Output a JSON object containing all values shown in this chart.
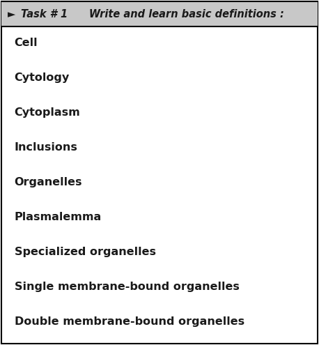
{
  "title_text": "Task # 1      Write and learn basic definitions :",
  "title_arrow": "►",
  "items": [
    "Cell",
    "Cytology",
    "Cytoplasm",
    "Inclusions",
    "Organelles",
    "Plasmalemma",
    "Specialized organelles",
    "Single membrane-bound organelles",
    "Double membrane-bound organelles"
  ],
  "bg_color": "#ffffff",
  "header_bg": "#c8c8c8",
  "border_color": "#000000",
  "text_color": "#1a1a1a",
  "title_fontsize": 10.5,
  "item_fontsize": 11.5,
  "fig_width": 4.58,
  "fig_height": 4.95,
  "dpi": 100
}
